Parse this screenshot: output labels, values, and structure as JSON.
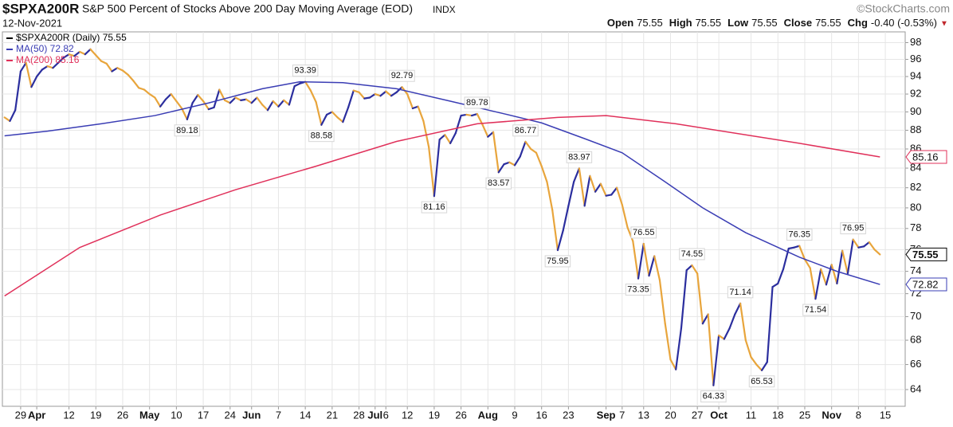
{
  "header": {
    "symbol": "$SPXA200R",
    "description": "S&P 500 Percent of Stocks Above 200 Day Moving Average (EOD)",
    "exchange": "INDX",
    "date": "12-Nov-2021",
    "watermark": "©StockCharts.com",
    "quote": [
      {
        "label": "Open",
        "value": "75.55"
      },
      {
        "label": "High",
        "value": "75.55"
      },
      {
        "label": "Low",
        "value": "75.55"
      },
      {
        "label": "Close",
        "value": "75.55"
      },
      {
        "label": "Chg",
        "value": "-0.40 (-0.53%)"
      }
    ]
  },
  "chart_data": {
    "type": "line",
    "log_y": true,
    "grid": true,
    "legend": "upper left",
    "xlim": [
      -3.4,
      164.7
    ],
    "ylim": [
      62.7,
      99.3
    ],
    "yticks": [
      64,
      66,
      68,
      70,
      72,
      74,
      76,
      78,
      80,
      82,
      84,
      86,
      88,
      90,
      92,
      94,
      96,
      98
    ],
    "xticks": [
      {
        "value": 0,
        "label": "29"
      },
      {
        "value": 3,
        "label": "Apr"
      },
      {
        "value": 9,
        "label": "12"
      },
      {
        "value": 14,
        "label": "19"
      },
      {
        "value": 19,
        "label": "26"
      },
      {
        "value": 24,
        "label": "May"
      },
      {
        "value": 29,
        "label": "10"
      },
      {
        "value": 34,
        "label": "17"
      },
      {
        "value": 39,
        "label": "24"
      },
      {
        "value": 43,
        "label": "Jun"
      },
      {
        "value": 48,
        "label": "7"
      },
      {
        "value": 53,
        "label": "14"
      },
      {
        "value": 58,
        "label": "21"
      },
      {
        "value": 63,
        "label": "28"
      },
      {
        "value": 66,
        "label": "Jul"
      },
      {
        "value": 68,
        "label": "6"
      },
      {
        "value": 72,
        "label": "12"
      },
      {
        "value": 77,
        "label": "19"
      },
      {
        "value": 82,
        "label": "26"
      },
      {
        "value": 87,
        "label": "Aug"
      },
      {
        "value": 92,
        "label": "9"
      },
      {
        "value": 97,
        "label": "16"
      },
      {
        "value": 102,
        "label": "23"
      },
      {
        "value": 109,
        "label": "Sep"
      },
      {
        "value": 112,
        "label": "7"
      },
      {
        "value": 116,
        "label": "13"
      },
      {
        "value": 121,
        "label": "20"
      },
      {
        "value": 126,
        "label": "27"
      },
      {
        "value": 130,
        "label": "Oct"
      },
      {
        "value": 136,
        "label": "11"
      },
      {
        "value": 141,
        "label": "18"
      },
      {
        "value": 146,
        "label": "25"
      },
      {
        "value": 151,
        "label": "Nov"
      },
      {
        "value": 156,
        "label": "8"
      },
      {
        "value": 161,
        "label": "15"
      }
    ],
    "series": [
      {
        "name": "$SPXA200R (Daily) 75.55",
        "color": "#000000",
        "up_color": "#2b2e9e",
        "down_color": "#e8a53c",
        "x": [
          -3,
          -2,
          -1,
          0,
          1,
          2,
          3,
          4,
          5,
          6,
          7,
          8,
          9,
          10,
          11,
          12,
          13,
          14,
          15,
          16,
          17,
          18,
          19,
          20,
          21,
          22,
          23,
          24,
          25,
          26,
          27,
          28,
          29,
          30,
          31,
          32,
          33,
          34,
          35,
          36,
          37,
          38,
          39,
          40,
          41,
          42,
          43,
          44,
          45,
          46,
          47,
          48,
          49,
          50,
          51,
          52,
          53,
          54,
          55,
          56,
          57,
          58,
          59,
          60,
          61,
          62,
          63,
          64,
          65,
          66,
          67,
          68,
          69,
          70,
          71,
          72,
          73,
          74,
          75,
          76,
          77,
          78,
          79,
          80,
          81,
          82,
          83,
          84,
          85,
          86,
          87,
          88,
          89,
          90,
          91,
          92,
          93,
          94,
          95,
          96,
          97,
          98,
          99,
          100,
          101,
          102,
          103,
          104,
          105,
          106,
          107,
          108,
          109,
          110,
          111,
          112,
          113,
          114,
          115,
          116,
          117,
          118,
          119,
          120,
          121,
          122,
          123,
          124,
          125,
          126,
          127,
          128,
          129,
          130,
          131,
          132,
          133,
          134,
          135,
          136,
          137,
          138,
          139,
          140,
          141,
          142,
          143,
          144,
          145,
          146,
          147,
          148,
          149,
          150,
          151,
          152,
          153,
          154,
          155,
          156,
          157,
          158,
          159,
          160
        ],
        "values": [
          89.4,
          89.0,
          90.2,
          94.6,
          95.6,
          92.8,
          94.0,
          94.8,
          95.2,
          95.0,
          95.6,
          96.2,
          96.6,
          96.4,
          96.9,
          96.6,
          97.2,
          96.5,
          95.8,
          95.5,
          94.6,
          95.0,
          94.7,
          94.2,
          93.5,
          92.7,
          92.5,
          92.0,
          91.6,
          90.6,
          91.4,
          92.0,
          91.2,
          90.4,
          89.18,
          91.0,
          91.9,
          91.2,
          90.3,
          90.5,
          92.5,
          91.3,
          91.0,
          91.6,
          91.3,
          91.4,
          91.0,
          91.6,
          90.8,
          90.2,
          91.2,
          90.6,
          91.3,
          90.8,
          92.9,
          93.2,
          93.39,
          92.4,
          91.1,
          88.58,
          89.7,
          90.0,
          89.4,
          88.9,
          90.5,
          92.4,
          92.2,
          91.5,
          91.6,
          92.0,
          91.8,
          92.3,
          91.8,
          92.2,
          92.79,
          92.0,
          90.4,
          90.6,
          89.0,
          86.2,
          81.16,
          87.0,
          87.5,
          86.6,
          87.7,
          89.6,
          89.7,
          89.6,
          89.78,
          88.6,
          87.3,
          87.8,
          83.57,
          84.4,
          84.6,
          84.3,
          85.2,
          86.77,
          86.0,
          85.6,
          84.2,
          82.6,
          79.8,
          75.95,
          77.8,
          80.2,
          82.6,
          83.97,
          80.2,
          83.2,
          81.6,
          82.4,
          81.2,
          81.3,
          82.0,
          80.3,
          78.1,
          76.8,
          73.35,
          76.55,
          73.6,
          75.4,
          73.2,
          69.4,
          66.4,
          65.6,
          69.0,
          74.1,
          74.55,
          73.8,
          69.4,
          70.2,
          64.33,
          68.4,
          68.1,
          69.0,
          70.2,
          71.14,
          68.0,
          66.6,
          66.0,
          65.53,
          66.2,
          72.6,
          72.9,
          74.2,
          76.1,
          76.2,
          76.35,
          75.1,
          74.3,
          71.54,
          74.2,
          72.8,
          74.6,
          72.9,
          75.9,
          73.8,
          76.95,
          76.2,
          76.3,
          76.7,
          76.0,
          75.55
        ]
      },
      {
        "name": "MA(50) 72.82",
        "color": "#3a3db4",
        "x": [
          -3,
          5,
          15,
          25,
          35,
          45,
          52,
          60,
          70,
          80,
          90,
          97,
          105,
          112,
          120,
          127,
          135,
          145,
          152,
          160
        ],
        "values": [
          87.4,
          87.9,
          88.7,
          89.6,
          91.0,
          92.6,
          93.4,
          93.3,
          92.6,
          91.2,
          89.8,
          88.8,
          87.1,
          85.6,
          82.6,
          80.0,
          77.6,
          75.3,
          74.0,
          72.82
        ]
      },
      {
        "name": "MA(200) 85.16",
        "color": "#e0305a",
        "x": [
          -3,
          11,
          26,
          40,
          55,
          70,
          85,
          100,
          109,
          122,
          145,
          160
        ],
        "values": [
          71.8,
          76.2,
          79.3,
          81.8,
          84.2,
          86.8,
          88.7,
          89.4,
          89.6,
          88.7,
          86.6,
          85.16
        ]
      }
    ],
    "annotations": [
      {
        "x": 31,
        "y": 89.18,
        "position": "below"
      },
      {
        "x": 53,
        "y": 93.39,
        "position": "above"
      },
      {
        "x": 56,
        "y": 88.58,
        "position": "below"
      },
      {
        "x": 71,
        "y": 92.79,
        "position": "above"
      },
      {
        "x": 77,
        "y": 81.16,
        "position": "below"
      },
      {
        "x": 85,
        "y": 89.78,
        "position": "above"
      },
      {
        "x": 89,
        "y": 83.57,
        "position": "below"
      },
      {
        "x": 94,
        "y": 86.77,
        "position": "above"
      },
      {
        "x": 100,
        "y": 75.95,
        "position": "below"
      },
      {
        "x": 104,
        "y": 83.97,
        "position": "above"
      },
      {
        "x": 115,
        "y": 73.35,
        "position": "below"
      },
      {
        "x": 116,
        "y": 76.55,
        "position": "above"
      },
      {
        "x": 125,
        "y": 74.55,
        "position": "above"
      },
      {
        "x": 129,
        "y": 64.33,
        "position": "below"
      },
      {
        "x": 134,
        "y": 71.14,
        "position": "above"
      },
      {
        "x": 138,
        "y": 65.53,
        "position": "below"
      },
      {
        "x": 145,
        "y": 76.35,
        "position": "above"
      },
      {
        "x": 148,
        "y": 71.54,
        "position": "below"
      },
      {
        "x": 155,
        "y": 76.95,
        "position": "above"
      }
    ]
  }
}
